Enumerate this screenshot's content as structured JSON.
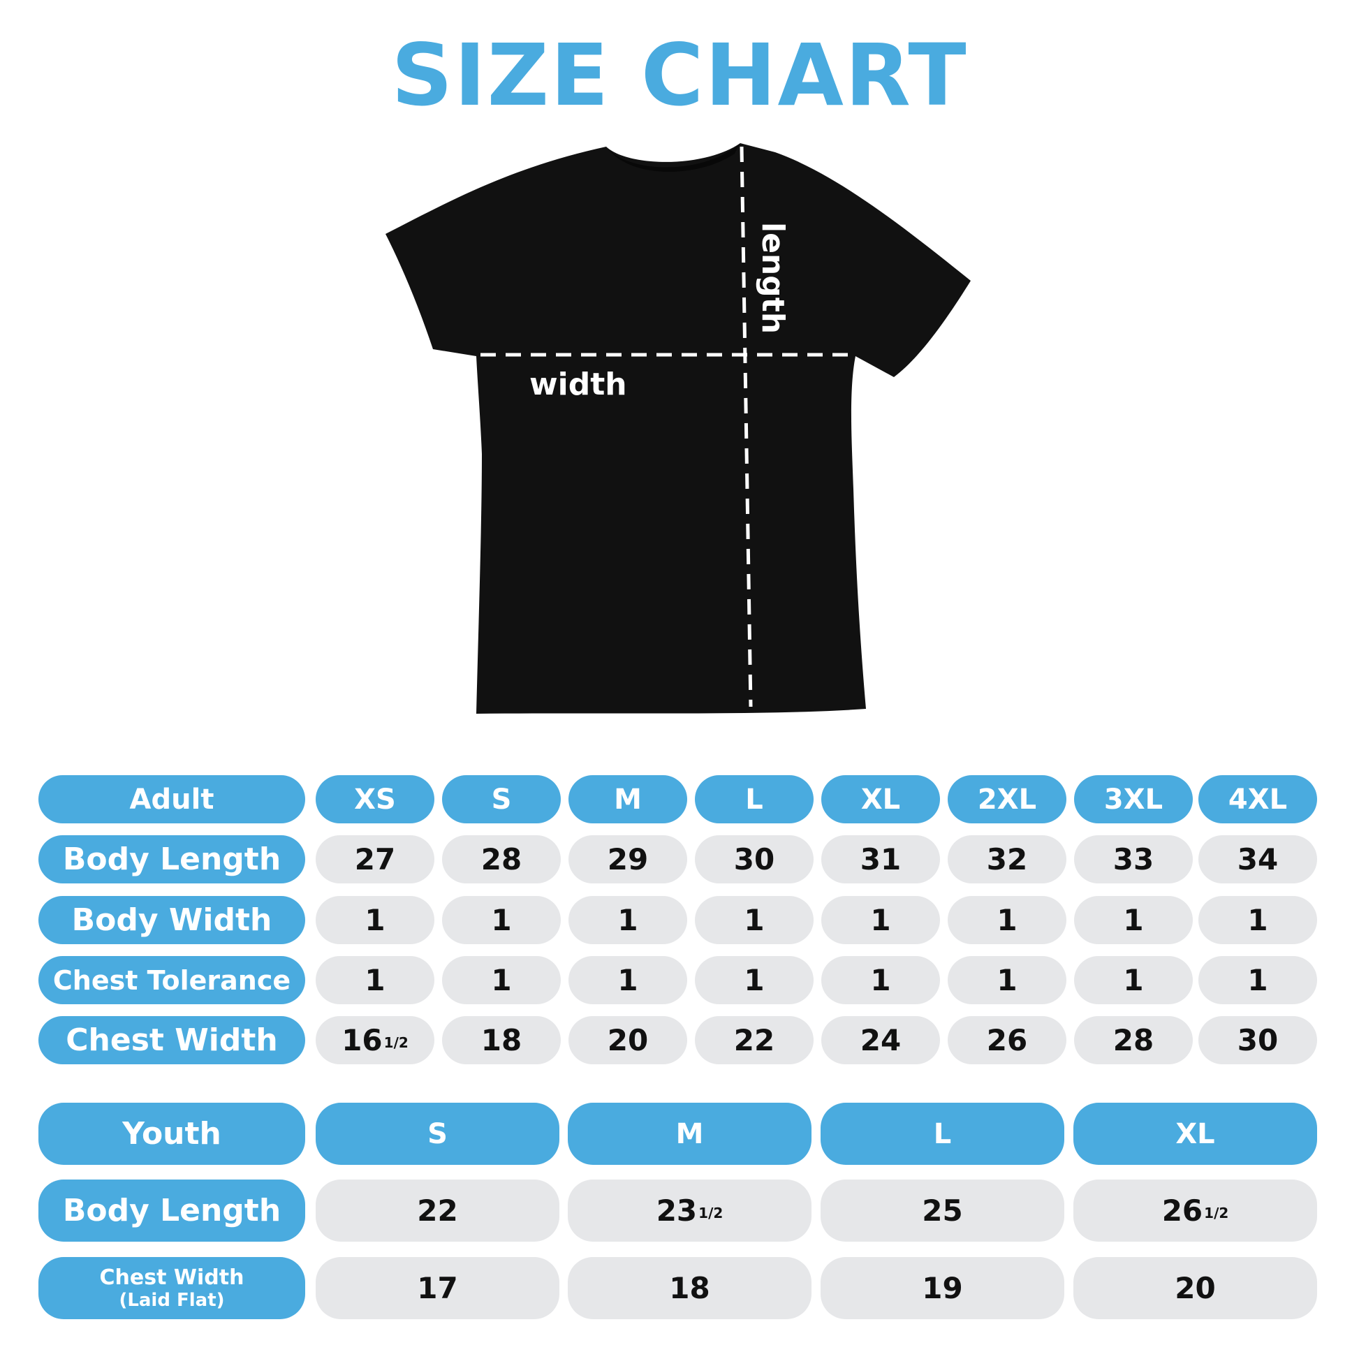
{
  "title": "SIZE CHART",
  "colors": {
    "accent": "#4aabdf",
    "cell": "#e6e7e9",
    "shirt": "#111111"
  },
  "diagram": {
    "length_label": "length",
    "width_label": "width"
  },
  "adult": {
    "header": "Adult",
    "sizes": [
      "XS",
      "S",
      "M",
      "L",
      "XL",
      "2XL",
      "3XL",
      "4XL"
    ],
    "rows": [
      {
        "label": "Body Length",
        "values": [
          "27",
          "28",
          "29",
          "30",
          "31",
          "32",
          "33",
          "34"
        ]
      },
      {
        "label": "Body Width",
        "values": [
          "1",
          "1",
          "1",
          "1",
          "1",
          "1",
          "1",
          "1"
        ]
      },
      {
        "label": "Chest Tolerance",
        "values": [
          "1",
          "1",
          "1",
          "1",
          "1",
          "1",
          "1",
          "1"
        ]
      },
      {
        "label": "Chest Width",
        "values": [
          "16 1/2",
          "18",
          "20",
          "22",
          "24",
          "26",
          "28",
          "30"
        ]
      }
    ]
  },
  "youth": {
    "header": "Youth",
    "sizes": [
      "S",
      "M",
      "L",
      "XL"
    ],
    "rows": [
      {
        "label": "Body Length",
        "values": [
          "22",
          "23 1/2",
          "25",
          "26 1/2"
        ]
      },
      {
        "label": "Chest Width",
        "sublabel": "(Laid Flat)",
        "values": [
          "17",
          "18",
          "19",
          "20"
        ]
      }
    ]
  }
}
